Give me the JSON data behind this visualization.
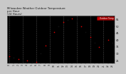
{
  "title": "Milwaukee Weather Outdoor Temperature\nper Hour\n(24 Hours)",
  "title_fontsize": 2.8,
  "background_color": "#c8c8c8",
  "plot_bg": "#000000",
  "hours": [
    0,
    1,
    2,
    3,
    4,
    5,
    6,
    7,
    8,
    9,
    10,
    11,
    12,
    13,
    14,
    15,
    16,
    17,
    18,
    19,
    20,
    21,
    22,
    23
  ],
  "temps": [
    28,
    27,
    26,
    25,
    25,
    24,
    24,
    30,
    36,
    42,
    46,
    50,
    53,
    55,
    56,
    54,
    50,
    46,
    42,
    38,
    35,
    33,
    40,
    38
  ],
  "dot_color_red": "#dd0000",
  "dot_color_black": "#111111",
  "ylim": [
    23,
    58
  ],
  "ytick_positions": [
    25,
    30,
    35,
    40,
    45,
    50,
    55
  ],
  "ytick_labels": [
    "25",
    "30",
    "35",
    "40",
    "45",
    "50",
    "55"
  ],
  "xtick_positions": [
    0,
    1,
    2,
    3,
    4,
    5,
    6,
    7,
    8,
    9,
    10,
    11,
    12,
    13,
    14,
    15,
    16,
    17,
    18,
    19,
    20,
    21,
    22,
    23
  ],
  "xtick_labels": [
    "0",
    "1",
    "2",
    "3",
    "4",
    "5",
    "6",
    "7",
    "8",
    "9",
    "10",
    "11",
    "12",
    "13",
    "14",
    "15",
    "16",
    "17",
    "18",
    "19",
    "20",
    "21",
    "22",
    "23"
  ],
  "ylabel_fontsize": 2.5,
  "xlabel_fontsize": 2.2,
  "legend_label": "Outdoor Temp",
  "legend_bg": "#cc0000",
  "legend_text_color": "#ffffff",
  "grid_color": "#555555",
  "dot_size": 1.2,
  "vgrid_hours": [
    0,
    3,
    6,
    9,
    12,
    15,
    18,
    21
  ]
}
